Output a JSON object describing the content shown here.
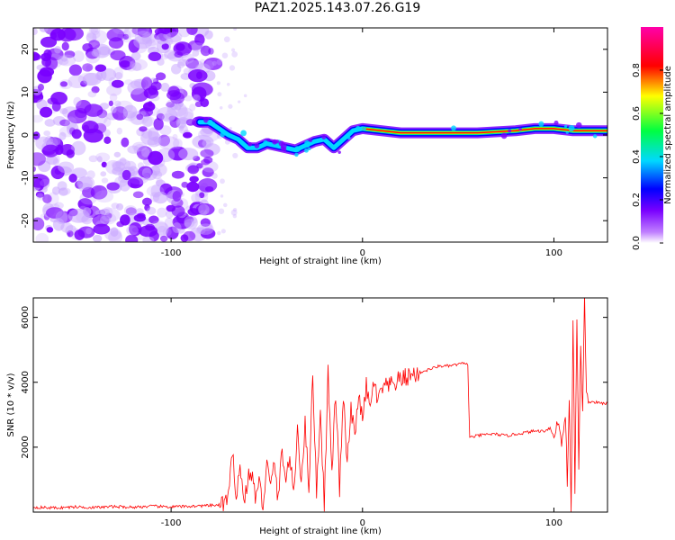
{
  "title": "PAZ1.2025.143.07.26.G19",
  "chart_data": [
    {
      "type": "heatmap",
      "name": "spectrogram",
      "xlabel": "Height of straight line (km)",
      "ylabel": "Frequency (Hz)",
      "xlim": [
        -172,
        128
      ],
      "ylim": [
        -25,
        25
      ],
      "xticks": [
        -100,
        0,
        100
      ],
      "xtick_labels": [
        "-100",
        "0",
        "100"
      ],
      "yticks": [
        -20,
        -10,
        0,
        10,
        20
      ],
      "ytick_labels": [
        "-20",
        "-10",
        "0",
        "10",
        "20"
      ],
      "colorbar": {
        "label": "Normalized spectral amplitude",
        "range": [
          0,
          1
        ],
        "ticks": [
          0.0,
          0.2,
          0.4,
          0.6,
          0.8
        ],
        "tick_labels": [
          "0.0",
          "0.2",
          "0.4",
          "0.6",
          "0.8"
        ],
        "colormap": "rainbow (violet→blue→cyan→green→yellow→red→magenta)",
        "colors": [
          "#ffffff",
          "#7a00ff",
          "#0000ff",
          "#00d8ff",
          "#00ff40",
          "#ffff00",
          "#ff0000",
          "#ff00aa"
        ]
      },
      "noise_region_x": [
        -172,
        -78
      ],
      "tone_trace": {
        "x": [
          -85,
          -80,
          -75,
          -70,
          -65,
          -60,
          -55,
          -50,
          -45,
          -40,
          -35,
          -30,
          -25,
          -20,
          -15,
          -10,
          -5,
          0,
          20,
          40,
          60,
          80,
          90,
          100,
          110,
          120,
          128
        ],
        "y": [
          3,
          3,
          1.5,
          0,
          -1,
          -3,
          -3,
          -2,
          -2.5,
          -3,
          -3.5,
          -2.5,
          -1.5,
          -1,
          -3,
          -1,
          1,
          1.5,
          0.5,
          0.5,
          0.5,
          1,
          1.5,
          1.5,
          1,
          1,
          1
        ]
      }
    },
    {
      "type": "line",
      "name": "snr",
      "xlabel": "Height of straight line (km)",
      "ylabel": "SNR (10 * v/v)",
      "xlim": [
        -172,
        128
      ],
      "ylim": [
        0,
        6600
      ],
      "xticks": [
        -100,
        0,
        100
      ],
      "xtick_labels": [
        "-100",
        "0",
        "100"
      ],
      "yticks": [
        2000,
        4000,
        6000
      ],
      "ytick_labels": [
        "2000",
        "4000",
        "6000"
      ],
      "color": "#ff0000",
      "x": [
        -172,
        -160,
        -150,
        -140,
        -130,
        -120,
        -110,
        -100,
        -90,
        -80,
        -75,
        -70,
        -68,
        -66,
        -64,
        -62,
        -60,
        -58,
        -56,
        -54,
        -52,
        -50,
        -48,
        -46,
        -44,
        -42,
        -40,
        -38,
        -36,
        -34,
        -32,
        -30,
        -28,
        -26,
        -24,
        -22,
        -20,
        -18,
        -16,
        -14,
        -12,
        -10,
        -8,
        -6,
        -4,
        -2,
        0,
        2,
        4,
        6,
        8,
        10,
        15,
        20,
        25,
        30,
        35,
        40,
        45,
        50,
        54,
        55,
        56,
        60,
        65,
        70,
        75,
        80,
        85,
        90,
        95,
        98,
        100,
        102,
        104,
        106,
        107,
        108,
        109,
        110,
        111,
        112,
        113,
        114,
        115,
        116,
        117,
        118,
        120,
        125,
        128
      ],
      "y": [
        150,
        130,
        160,
        140,
        170,
        150,
        180,
        160,
        180,
        200,
        220,
        400,
        1800,
        600,
        1400,
        300,
        1000,
        1200,
        500,
        900,
        200,
        1500,
        700,
        1600,
        300,
        2000,
        900,
        1800,
        400,
        2600,
        1000,
        2700,
        800,
        4200,
        600,
        3200,
        200,
        4300,
        1200,
        3700,
        700,
        3600,
        1400,
        3200,
        2200,
        3800,
        2700,
        3900,
        3100,
        4100,
        3300,
        3800,
        3900,
        4100,
        4200,
        4300,
        4400,
        4500,
        4500,
        4550,
        4600,
        4500,
        2300,
        2350,
        2400,
        2400,
        2350,
        2400,
        2450,
        2500,
        2500,
        2600,
        2300,
        2800,
        2200,
        3000,
        1000,
        3500,
        200,
        5700,
        700,
        6100,
        1200,
        5200,
        3200,
        6600,
        3500,
        3400,
        3400,
        3350,
        3350
      ]
    }
  ]
}
